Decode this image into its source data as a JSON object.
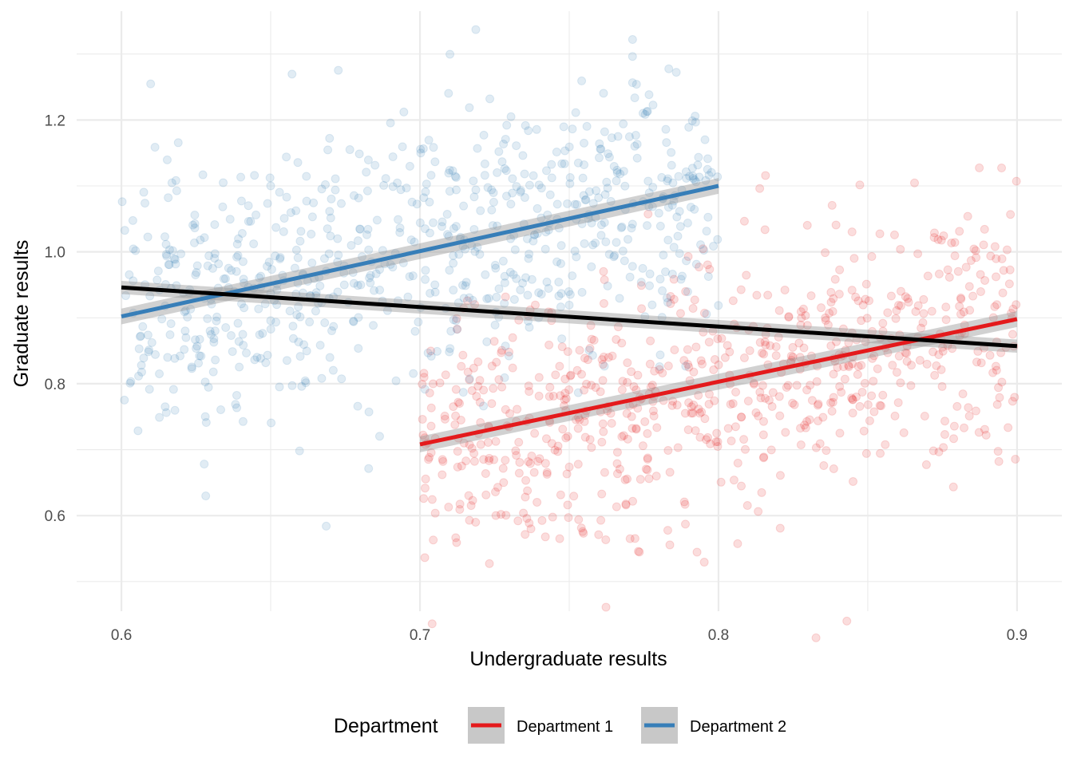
{
  "chart_data": {
    "type": "scatter",
    "title": "",
    "xlabel": "Undergraduate results",
    "ylabel": "Graduate results",
    "xlim": [
      0.585,
      0.915
    ],
    "ylim": [
      0.455,
      1.365
    ],
    "x_ticks": [
      0.6,
      0.7,
      0.8,
      0.9
    ],
    "x_tick_labels": [
      "0.6",
      "0.7",
      "0.8",
      "0.9"
    ],
    "y_ticks": [
      0.6,
      0.8,
      1.0,
      1.2
    ],
    "y_tick_labels": [
      "0.6",
      "0.8",
      "1.0",
      "1.2"
    ],
    "grid": true,
    "legend": {
      "title": "Department",
      "position": "bottom",
      "entries": [
        {
          "label": "Department 1",
          "color": "#e41a1c"
        },
        {
          "label": "Department 2",
          "color": "#377eb8"
        }
      ]
    },
    "series": [
      {
        "name": "Department 1",
        "color": "#e41a1c",
        "point_alpha": 0.15,
        "x_range": [
          0.7,
          0.9
        ],
        "point_count": 750,
        "fit_line": {
          "x": [
            0.7,
            0.9
          ],
          "y": [
            0.708,
            0.898
          ]
        },
        "cloud": {
          "y_center_at_xmin": 0.708,
          "y_center_at_xmax": 0.898,
          "y_spread": 0.1
        }
      },
      {
        "name": "Department 2",
        "color": "#377eb8",
        "point_alpha": 0.15,
        "x_range": [
          0.6,
          0.8
        ],
        "point_count": 750,
        "fit_line": {
          "x": [
            0.6,
            0.8
          ],
          "y": [
            0.902,
            1.1
          ]
        },
        "cloud": {
          "y_center_at_xmin": 0.902,
          "y_center_at_xmax": 1.1,
          "y_spread": 0.1
        }
      }
    ],
    "overall_fit": {
      "color": "#000000",
      "x": [
        0.6,
        0.9
      ],
      "y": [
        0.946,
        0.857
      ]
    }
  }
}
